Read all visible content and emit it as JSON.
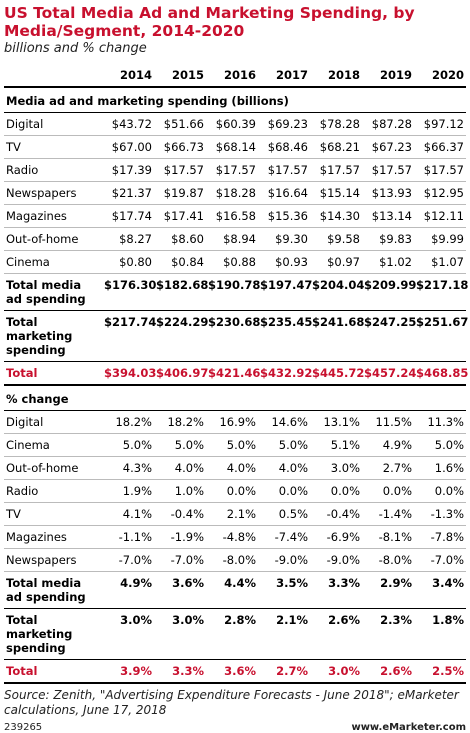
{
  "header": {
    "title": "US Total Media Ad and Marketing Spending, by Media/Segment, 2014-2020",
    "subtitle": "billions and % change"
  },
  "table": {
    "columns": [
      "2014",
      "2015",
      "2016",
      "2017",
      "2018",
      "2019",
      "2020"
    ],
    "sections": [
      {
        "heading": "Media ad and marketing spending (billions)",
        "rows": [
          {
            "label": "Digital",
            "values": [
              "$43.72",
              "$51.66",
              "$60.39",
              "$69.23",
              "$78.28",
              "$87.28",
              "$97.12"
            ]
          },
          {
            "label": "TV",
            "values": [
              "$67.00",
              "$66.73",
              "$68.14",
              "$68.46",
              "$68.21",
              "$67.23",
              "$66.37"
            ]
          },
          {
            "label": "Radio",
            "values": [
              "$17.39",
              "$17.57",
              "$17.57",
              "$17.57",
              "$17.57",
              "$17.57",
              "$17.57"
            ]
          },
          {
            "label": "Newspapers",
            "values": [
              "$21.37",
              "$19.87",
              "$18.28",
              "$16.64",
              "$15.14",
              "$13.93",
              "$12.95"
            ]
          },
          {
            "label": "Magazines",
            "values": [
              "$17.74",
              "$17.41",
              "$16.58",
              "$15.36",
              "$14.30",
              "$13.14",
              "$12.11"
            ]
          },
          {
            "label": "Out-of-home",
            "values": [
              "$8.27",
              "$8.60",
              "$8.94",
              "$9.30",
              "$9.58",
              "$9.83",
              "$9.99"
            ]
          },
          {
            "label": "Cinema",
            "values": [
              "$0.80",
              "$0.84",
              "$0.88",
              "$0.93",
              "$0.97",
              "$1.02",
              "$1.07"
            ]
          }
        ],
        "totals": [
          {
            "label": "Total media ad spending",
            "values": [
              "$176.30",
              "$182.68",
              "$190.78",
              "$197.47",
              "$204.04",
              "$209.99",
              "$217.18"
            ]
          },
          {
            "label": "Total marketing spending",
            "values": [
              "$217.74",
              "$224.29",
              "$230.68",
              "$235.45",
              "$241.68",
              "$247.25",
              "$251.67"
            ]
          },
          {
            "label": "Total",
            "values": [
              "$394.03",
              "$406.97",
              "$421.46",
              "$432.92",
              "$445.72",
              "$457.24",
              "$468.85"
            ]
          }
        ]
      },
      {
        "heading": "% change",
        "rows": [
          {
            "label": "Digital",
            "values": [
              "18.2%",
              "18.2%",
              "16.9%",
              "14.6%",
              "13.1%",
              "11.5%",
              "11.3%"
            ]
          },
          {
            "label": "Cinema",
            "values": [
              "5.0%",
              "5.0%",
              "5.0%",
              "5.0%",
              "5.1%",
              "4.9%",
              "5.0%"
            ]
          },
          {
            "label": "Out-of-home",
            "values": [
              "4.3%",
              "4.0%",
              "4.0%",
              "4.0%",
              "3.0%",
              "2.7%",
              "1.6%"
            ]
          },
          {
            "label": "Radio",
            "values": [
              "1.9%",
              "1.0%",
              "0.0%",
              "0.0%",
              "0.0%",
              "0.0%",
              "0.0%"
            ]
          },
          {
            "label": "TV",
            "values": [
              "4.1%",
              "-0.4%",
              "2.1%",
              "0.5%",
              "-0.4%",
              "-1.4%",
              "-1.3%"
            ]
          },
          {
            "label": "Magazines",
            "values": [
              "-1.1%",
              "-1.9%",
              "-4.8%",
              "-7.4%",
              "-6.9%",
              "-8.1%",
              "-7.8%"
            ]
          },
          {
            "label": "Newspapers",
            "values": [
              "-7.0%",
              "-7.0%",
              "-8.0%",
              "-9.0%",
              "-9.0%",
              "-8.0%",
              "-7.0%"
            ]
          }
        ],
        "totals": [
          {
            "label": "Total media ad spending",
            "values": [
              "4.9%",
              "3.6%",
              "4.4%",
              "3.5%",
              "3.3%",
              "2.9%",
              "3.4%"
            ]
          },
          {
            "label": "Total marketing spending",
            "values": [
              "3.0%",
              "3.0%",
              "2.8%",
              "2.1%",
              "2.6%",
              "2.3%",
              "1.8%"
            ]
          },
          {
            "label": "Total",
            "values": [
              "3.9%",
              "3.3%",
              "3.6%",
              "2.7%",
              "3.0%",
              "2.6%",
              "2.5%"
            ]
          }
        ]
      }
    ]
  },
  "footer": {
    "source": "Source: Zenith, \"Advertising Expenditure Forecasts - June 2018\"; eMarketer calculations, June 17, 2018",
    "id": "239265",
    "site": "www.eMarketer.com"
  }
}
